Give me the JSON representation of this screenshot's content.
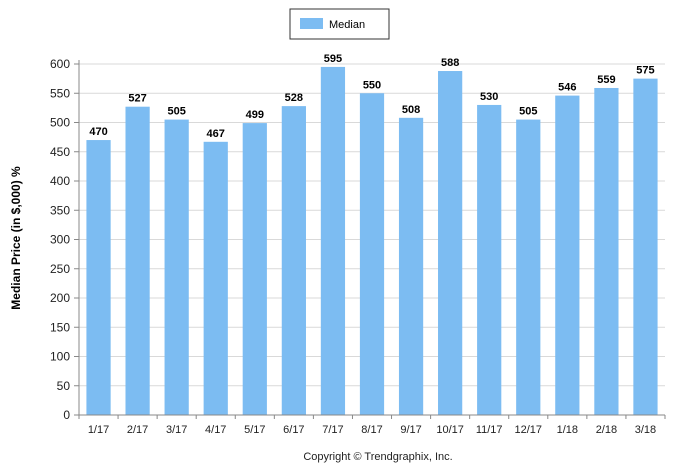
{
  "colors": {
    "bar": "#7cbcf2",
    "grid": "#d9d9d9",
    "axis": "#888888",
    "background": "#ffffff"
  },
  "legend": {
    "label": "Median",
    "placement": "top-center"
  },
  "copyright": "Copyright © Trendgraphix, Inc.",
  "chart_data": {
    "type": "bar",
    "categories": [
      "1/17",
      "2/17",
      "3/17",
      "4/17",
      "5/17",
      "6/17",
      "7/17",
      "8/17",
      "9/17",
      "10/17",
      "11/17",
      "12/17",
      "1/18",
      "2/18",
      "3/18"
    ],
    "series": [
      {
        "name": "Median",
        "values": [
          470,
          527,
          505,
          467,
          499,
          528,
          595,
          550,
          508,
          588,
          530,
          505,
          546,
          559,
          575
        ]
      }
    ],
    "ylabel": "Median Price (in $,000) %",
    "xlabel": "",
    "ylim": [
      0,
      600
    ],
    "yticks": [
      0,
      50,
      100,
      150,
      200,
      250,
      300,
      350,
      400,
      450,
      500,
      550,
      600
    ],
    "grid": true,
    "data_labels": true
  }
}
